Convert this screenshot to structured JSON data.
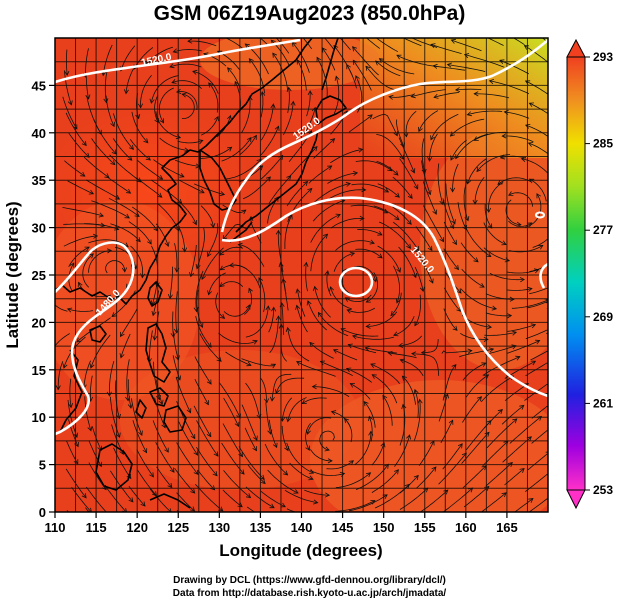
{
  "title": "GSM 06Z19Aug2023 (850.0hPa)",
  "xaxis": {
    "label": "Longitude (degrees)",
    "range": [
      110,
      170
    ],
    "ticks": [
      "110",
      "115",
      "120",
      "125",
      "130",
      "135",
      "140",
      "145",
      "150",
      "155",
      "160",
      "165"
    ]
  },
  "yaxis": {
    "label": "Latitude (degrees)",
    "range": [
      0,
      50
    ],
    "ticks": [
      "0",
      "5",
      "10",
      "15",
      "20",
      "25",
      "30",
      "35",
      "40",
      "45"
    ]
  },
  "colorbar": {
    "range": [
      253,
      293
    ],
    "labels": [
      "293",
      "285",
      "277",
      "269",
      "261",
      "253"
    ]
  },
  "contour_labels": [
    {
      "text": "1520.0"
    },
    {
      "text": "1520.0"
    },
    {
      "text": "1480.0"
    },
    {
      "text": "1520.0"
    }
  ],
  "credits": {
    "line1": "Drawing by DCL (https://www.gfd-dennou.org/library/dcl/)",
    "line2": "Data from http://database.rish.kyoto-u.ac.jp/arch/jmadata/"
  },
  "colors": {
    "field_main": "#e8401c",
    "field_warm": "#f2622a",
    "field_yellow": "#d8e020",
    "contour": "#ffffff",
    "coast": "#000000"
  }
}
